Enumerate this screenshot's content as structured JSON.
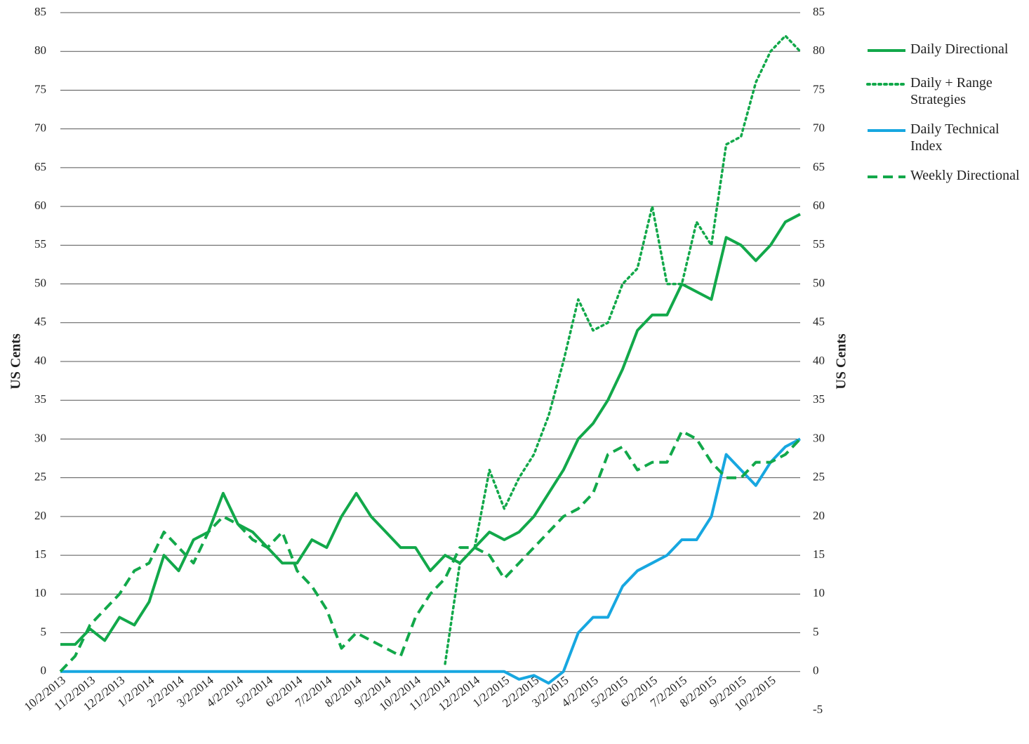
{
  "chart_data": {
    "type": "line",
    "y_label": "US Cents",
    "y2_label": "US Cents",
    "categories": [
      "10/2/2013",
      null,
      "11/2/2013",
      null,
      "12/2/2013",
      null,
      "1/2/2014",
      null,
      "2/2/2014",
      null,
      "3/2/2014",
      null,
      "4/2/2014",
      null,
      "5/2/2014",
      null,
      "6/2/2014",
      null,
      "7/2/2014",
      null,
      "8/2/2014",
      null,
      "9/2/2014",
      null,
      "10/2/2014",
      null,
      "11/2/2014",
      null,
      "12/2/2014",
      null,
      "1/2/2015",
      null,
      "2/2/2015",
      null,
      "3/2/2015",
      null,
      "4/2/2015",
      null,
      "5/2/2015",
      null,
      "6/2/2015",
      null,
      "7/2/2015",
      null,
      "8/2/2015",
      null,
      "9/2/2015",
      null,
      "10/2/2015",
      null,
      null
    ],
    "series": [
      {
        "name": "Daily Directional",
        "color": "#12a84a",
        "dash": "solid",
        "values": [
          3.5,
          3.5,
          5.5,
          4,
          7,
          6,
          9,
          15,
          13,
          17,
          18,
          23,
          19,
          18,
          16,
          14,
          14,
          17,
          16,
          20,
          23,
          20,
          18,
          16,
          16,
          13,
          15,
          14,
          16,
          18,
          17,
          18,
          20,
          23,
          26,
          30,
          32,
          35,
          39,
          44,
          46,
          46,
          50,
          49,
          48,
          56,
          55,
          53,
          55,
          58,
          59
        ]
      },
      {
        "name": "Daily + Range Strategies",
        "color": "#12a84a",
        "dash": "dotted",
        "values": [
          null,
          null,
          null,
          null,
          null,
          null,
          null,
          null,
          null,
          null,
          null,
          null,
          null,
          null,
          null,
          null,
          null,
          null,
          null,
          null,
          null,
          null,
          null,
          null,
          null,
          null,
          1,
          14,
          16,
          26,
          21,
          25,
          28,
          33,
          40,
          48,
          44,
          45,
          50,
          52,
          60,
          50,
          50,
          58,
          55,
          68,
          69,
          76,
          80,
          82,
          80
        ]
      },
      {
        "name": "Daily Technical Index",
        "color": "#17a7e0",
        "dash": "solid",
        "values": [
          0,
          0,
          0,
          0,
          0,
          0,
          0,
          0,
          0,
          0,
          0,
          0,
          0,
          0,
          0,
          0,
          0,
          0,
          0,
          0,
          0,
          0,
          0,
          0,
          0,
          0,
          0,
          0,
          0,
          0,
          0,
          -1,
          -0.5,
          -1.5,
          0,
          5,
          7,
          7,
          11,
          13,
          14,
          15,
          17,
          17,
          20,
          28,
          26,
          24,
          27,
          29,
          30
        ]
      },
      {
        "name": "Weekly Directional",
        "color": "#12a84a",
        "dash": "dashed",
        "values": [
          0,
          2,
          6,
          8,
          10,
          13,
          14,
          18,
          16,
          14,
          18,
          20,
          19,
          17,
          16,
          18,
          13,
          11,
          8,
          3,
          5,
          4,
          3,
          2,
          7,
          10,
          12,
          16,
          16,
          15,
          12,
          14,
          16,
          18,
          20,
          21,
          23,
          28,
          29,
          26,
          27,
          27,
          31,
          30,
          27,
          25,
          25,
          27,
          27,
          28,
          30
        ]
      }
    ],
    "ylim": [
      -5,
      85
    ],
    "yticks": [
      0,
      5,
      10,
      15,
      20,
      25,
      30,
      35,
      40,
      45,
      50,
      55,
      60,
      65,
      70,
      75,
      80,
      85
    ],
    "y2lim": [
      -5,
      85
    ],
    "y2ticks": [
      -5,
      0,
      5,
      10,
      15,
      20,
      25,
      30,
      35,
      40,
      45,
      50,
      55,
      60,
      65,
      70,
      75,
      80,
      85
    ],
    "grid": true,
    "legend": "right"
  }
}
